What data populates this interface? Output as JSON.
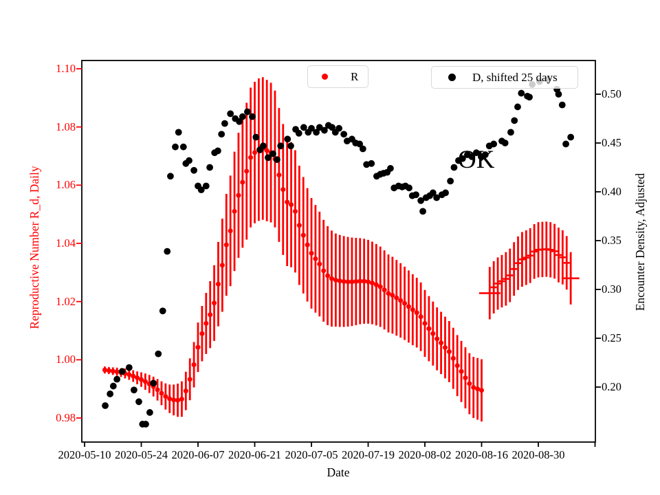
{
  "annotation": {
    "text": "OK"
  },
  "axes": {
    "x": {
      "label": "Date",
      "tick_days": [
        0,
        14,
        28,
        42,
        56,
        70,
        84,
        98,
        112,
        126
      ],
      "tick_labels": [
        "2020-05-10",
        "2020-05-24",
        "2020-06-07",
        "2020-06-21",
        "2020-07-05",
        "2020-07-19",
        "2020-08-02",
        "2020-08-16",
        "2020-08-30",
        ""
      ]
    },
    "y_left": {
      "label": "Reproductive Number R_d, Daily",
      "color": "#ff0000",
      "tick_values": [
        0.98,
        1.0,
        1.02,
        1.04,
        1.06,
        1.08,
        1.1
      ],
      "tick_labels": [
        "0.98",
        "1.00",
        "1.02",
        "1.04",
        "1.06",
        "1.08",
        "1.10"
      ]
    },
    "y_right": {
      "label": "Encounter Density, Adjusted",
      "color": "#000000",
      "tick_values": [
        0.2,
        0.25,
        0.3,
        0.35,
        0.4,
        0.45,
        0.5
      ],
      "tick_labels": [
        "0.20",
        "0.25",
        "0.30",
        "0.35",
        "0.40",
        "0.45",
        "0.50"
      ]
    }
  },
  "legend": [
    {
      "label": "R",
      "color": "#ff0000"
    },
    {
      "label": "D, shifted 25 days",
      "color": "#000000"
    }
  ],
  "chart_data": {
    "type": "scatter",
    "title": "",
    "xlabel": "Date",
    "ylabel_left": "Reproductive Number R_d, Daily",
    "ylabel_right": "Encounter Density, Adjusted",
    "x_unit": "days since 2020-05-10",
    "x_range_days": [
      -0.7,
      126
    ],
    "ylim_left": [
      0.9716,
      1.1006
    ],
    "ylim_right": [
      0.1435,
      0.5345
    ],
    "grid": false,
    "legend_position": "upper center, two boxes",
    "annotation": {
      "text": "OK",
      "day": 92.0,
      "value_right": 0.437
    },
    "series": [
      {
        "name": "R",
        "axis": "left",
        "color": "#ff0000",
        "marker": "dot-with-errorbar",
        "points_day_value_err": [
          [
            5,
            0.9965,
            0.0012
          ],
          [
            6,
            0.9963,
            0.0012
          ],
          [
            7,
            0.9961,
            0.0013
          ],
          [
            8,
            0.9959,
            0.0014
          ],
          [
            9,
            0.9956,
            0.0015
          ],
          [
            10,
            0.9953,
            0.0017
          ],
          [
            11,
            0.9949,
            0.0018
          ],
          [
            12,
            0.9944,
            0.002
          ],
          [
            13,
            0.9938,
            0.0022
          ],
          [
            14,
            0.9932,
            0.0025
          ],
          [
            15,
            0.9925,
            0.0028
          ],
          [
            16,
            0.9917,
            0.0031
          ],
          [
            17,
            0.9908,
            0.0034
          ],
          [
            18,
            0.9897,
            0.0037
          ],
          [
            19,
            0.9885,
            0.0041
          ],
          [
            20,
            0.9874,
            0.0045
          ],
          [
            21,
            0.9866,
            0.0049
          ],
          [
            22,
            0.9862,
            0.0053
          ],
          [
            23,
            0.9861,
            0.0057
          ],
          [
            24,
            0.9865,
            0.0061
          ],
          [
            25,
            0.9893,
            0.0066
          ],
          [
            26,
            0.9933,
            0.0072
          ],
          [
            27,
            0.9983,
            0.0078
          ],
          [
            28,
            1.0043,
            0.0085
          ],
          [
            29,
            1.009,
            0.0095
          ],
          [
            30,
            1.0125,
            0.0105
          ],
          [
            31,
            1.0155,
            0.0115
          ],
          [
            32,
            1.0195,
            0.013
          ],
          [
            33,
            1.026,
            0.0145
          ],
          [
            34,
            1.0325,
            0.016
          ],
          [
            35,
            1.0395,
            0.0175
          ],
          [
            36,
            1.0443,
            0.019
          ],
          [
            37,
            1.051,
            0.0205
          ],
          [
            38,
            1.0565,
            0.0215
          ],
          [
            39,
            1.061,
            0.0225
          ],
          [
            40,
            1.0648,
            0.0235
          ],
          [
            41,
            1.0695,
            0.024
          ],
          [
            42,
            1.0712,
            0.0243
          ],
          [
            43,
            1.0722,
            0.0245
          ],
          [
            44,
            1.0726,
            0.0245
          ],
          [
            45,
            1.0719,
            0.0243
          ],
          [
            46,
            1.0712,
            0.024
          ],
          [
            47,
            1.069,
            0.0235
          ],
          [
            48,
            1.0635,
            0.023
          ],
          [
            49,
            1.0585,
            0.0225
          ],
          [
            50,
            1.0542,
            0.022
          ],
          [
            51,
            1.0533,
            0.0215
          ],
          [
            52,
            1.051,
            0.021
          ],
          [
            53,
            1.0462,
            0.0205
          ],
          [
            54,
            1.0428,
            0.02
          ],
          [
            55,
            1.0395,
            0.0195
          ],
          [
            56,
            1.0366,
            0.019
          ],
          [
            57,
            1.0347,
            0.0185
          ],
          [
            58,
            1.0329,
            0.018
          ],
          [
            59,
            1.0306,
            0.0175
          ],
          [
            60,
            1.0289,
            0.017
          ],
          [
            61,
            1.0279,
            0.0165
          ],
          [
            62,
            1.0274,
            0.016
          ],
          [
            63,
            1.0271,
            0.0158
          ],
          [
            64,
            1.0269,
            0.0156
          ],
          [
            65,
            1.0268,
            0.0154
          ],
          [
            66,
            1.0268,
            0.0152
          ],
          [
            67,
            1.0269,
            0.015
          ],
          [
            68,
            1.027,
            0.0148
          ],
          [
            69,
            1.027,
            0.0146
          ],
          [
            70,
            1.0268,
            0.0144
          ],
          [
            71,
            1.0264,
            0.0142
          ],
          [
            72,
            1.0258,
            0.014
          ],
          [
            73,
            1.0251,
            0.0138
          ],
          [
            74,
            1.024,
            0.0136
          ],
          [
            75,
            1.0228,
            0.0134
          ],
          [
            76,
            1.0222,
            0.0132
          ],
          [
            77,
            1.0213,
            0.013
          ],
          [
            78,
            1.0204,
            0.0128
          ],
          [
            79,
            1.0194,
            0.0126
          ],
          [
            80,
            1.0183,
            0.0124
          ],
          [
            81,
            1.0172,
            0.0122
          ],
          [
            82,
            1.0162,
            0.012
          ],
          [
            83,
            1.0148,
            0.0118
          ],
          [
            84,
            1.0125,
            0.0115
          ],
          [
            85,
            1.0107,
            0.0112
          ],
          [
            86,
            1.009,
            0.011
          ],
          [
            87,
            1.0072,
            0.0108
          ],
          [
            88,
            1.0058,
            0.0107
          ],
          [
            89,
            1.0042,
            0.0106
          ],
          [
            90,
            1.0028,
            0.0105
          ],
          [
            91,
            1.0005,
            0.0105
          ],
          [
            92,
            0.998,
            0.0105
          ],
          [
            93,
            0.996,
            0.0105
          ],
          [
            94,
            0.9938,
            0.0105
          ],
          [
            95,
            0.9918,
            0.0105
          ],
          [
            96,
            0.9905,
            0.0105
          ],
          [
            97,
            0.99,
            0.0106
          ],
          [
            98,
            0.9895,
            0.0107
          ]
        ]
      },
      {
        "name": "R (recent segment)",
        "axis": "left",
        "color": "#ff0000",
        "marker": "hline-with-errorbar",
        "points_day_value_err_dashw": [
          [
            100,
            1.0229,
            0.009,
            31
          ],
          [
            101,
            1.0249,
            0.009,
            9
          ],
          [
            102,
            1.0262,
            0.009,
            9
          ],
          [
            103,
            1.027,
            0.009,
            9
          ],
          [
            104,
            1.0278,
            0.0092,
            9
          ],
          [
            105,
            1.029,
            0.0092,
            9
          ],
          [
            106,
            1.0312,
            0.0092,
            9
          ],
          [
            107,
            1.0332,
            0.0092,
            9
          ],
          [
            108,
            1.0345,
            0.0094,
            9
          ],
          [
            109,
            1.0351,
            0.0094,
            9
          ],
          [
            110,
            1.0358,
            0.0094,
            9
          ],
          [
            111,
            1.0372,
            0.0094,
            9
          ],
          [
            112,
            1.0378,
            0.0095,
            9
          ],
          [
            113,
            1.0379,
            0.0095,
            9
          ],
          [
            114,
            1.038,
            0.0095,
            9
          ],
          [
            115,
            1.0378,
            0.0095,
            9
          ],
          [
            116,
            1.0373,
            0.0094,
            9
          ],
          [
            117,
            1.036,
            0.0094,
            9
          ],
          [
            118,
            1.0352,
            0.0093,
            9
          ],
          [
            119,
            1.0333,
            0.0092,
            9
          ],
          [
            120,
            1.028,
            0.009,
            25
          ]
        ]
      },
      {
        "name": "D, shifted 25 days",
        "axis": "right",
        "color": "#000000",
        "marker": "dot",
        "points_day_value": [
          [
            5.1,
            0.181
          ],
          [
            6.3,
            0.193
          ],
          [
            7.1,
            0.201
          ],
          [
            8.0,
            0.208
          ],
          [
            9.3,
            0.216
          ],
          [
            11.0,
            0.22
          ],
          [
            12.2,
            0.197
          ],
          [
            13.4,
            0.185
          ],
          [
            14.3,
            0.162
          ],
          [
            15.1,
            0.162
          ],
          [
            16.1,
            0.174
          ],
          [
            17.0,
            0.204
          ],
          [
            18.2,
            0.234
          ],
          [
            19.3,
            0.278
          ],
          [
            20.4,
            0.339
          ],
          [
            21.2,
            0.416
          ],
          [
            22.4,
            0.446
          ],
          [
            23.2,
            0.461
          ],
          [
            24.4,
            0.446
          ],
          [
            25.0,
            0.429
          ],
          [
            25.8,
            0.432
          ],
          [
            27.0,
            0.422
          ],
          [
            28.0,
            0.406
          ],
          [
            28.8,
            0.402
          ],
          [
            30.0,
            0.406
          ],
          [
            30.9,
            0.425
          ],
          [
            32.1,
            0.44
          ],
          [
            32.9,
            0.442
          ],
          [
            33.8,
            0.459
          ],
          [
            34.6,
            0.47
          ],
          [
            36.0,
            0.48
          ],
          [
            37.2,
            0.475
          ],
          [
            38.2,
            0.472
          ],
          [
            39.0,
            0.477
          ],
          [
            40.2,
            0.482
          ],
          [
            41.4,
            0.477
          ],
          [
            42.3,
            0.456
          ],
          [
            43.3,
            0.443
          ],
          [
            44.1,
            0.447
          ],
          [
            45.3,
            0.435
          ],
          [
            46.5,
            0.439
          ],
          [
            47.5,
            0.433
          ],
          [
            48.4,
            0.447
          ],
          [
            50.1,
            0.454
          ],
          [
            50.9,
            0.447
          ],
          [
            52.1,
            0.464
          ],
          [
            52.9,
            0.46
          ],
          [
            54.1,
            0.466
          ],
          [
            55.2,
            0.461
          ],
          [
            56.0,
            0.465
          ],
          [
            57.2,
            0.461
          ],
          [
            58.0,
            0.466
          ],
          [
            59.2,
            0.463
          ],
          [
            60.2,
            0.468
          ],
          [
            61.1,
            0.466
          ],
          [
            61.9,
            0.461
          ],
          [
            62.8,
            0.465
          ],
          [
            64.0,
            0.459
          ],
          [
            64.8,
            0.452
          ],
          [
            66.0,
            0.454
          ],
          [
            66.9,
            0.45
          ],
          [
            67.9,
            0.449
          ],
          [
            68.7,
            0.444
          ],
          [
            69.6,
            0.428
          ],
          [
            70.8,
            0.429
          ],
          [
            72.1,
            0.416
          ],
          [
            73.0,
            0.418
          ],
          [
            73.8,
            0.419
          ],
          [
            74.7,
            0.42
          ],
          [
            75.5,
            0.424
          ],
          [
            76.4,
            0.404
          ],
          [
            77.5,
            0.406
          ],
          [
            78.4,
            0.405
          ],
          [
            79.2,
            0.406
          ],
          [
            80.1,
            0.404
          ],
          [
            80.9,
            0.396
          ],
          [
            81.8,
            0.397
          ],
          [
            83.0,
            0.391
          ],
          [
            83.5,
            0.38
          ],
          [
            84.3,
            0.394
          ],
          [
            85.2,
            0.396
          ],
          [
            86.0,
            0.399
          ],
          [
            86.9,
            0.394
          ],
          [
            88.2,
            0.397
          ],
          [
            89.1,
            0.399
          ],
          [
            90.3,
            0.411
          ],
          [
            91.2,
            0.425
          ],
          [
            92.3,
            0.432
          ],
          [
            93.3,
            0.434
          ],
          [
            94.5,
            0.438
          ],
          [
            95.6,
            0.436
          ],
          [
            96.7,
            0.44
          ],
          [
            97.9,
            0.436
          ],
          [
            98.9,
            0.438
          ],
          [
            99.9,
            0.447
          ],
          [
            101.0,
            0.449
          ],
          [
            103.0,
            0.452
          ],
          [
            103.8,
            0.45
          ],
          [
            105.2,
            0.461
          ],
          [
            106.1,
            0.473
          ],
          [
            106.9,
            0.487
          ],
          [
            107.8,
            0.501
          ],
          [
            109.3,
            0.498
          ],
          [
            109.8,
            0.497
          ],
          [
            110.5,
            0.51
          ],
          [
            112.3,
            0.513
          ],
          [
            114.3,
            0.515
          ],
          [
            116.6,
            0.505
          ],
          [
            117.0,
            0.5
          ],
          [
            117.9,
            0.489
          ],
          [
            118.8,
            0.449
          ],
          [
            120.0,
            0.456
          ]
        ]
      }
    ]
  }
}
